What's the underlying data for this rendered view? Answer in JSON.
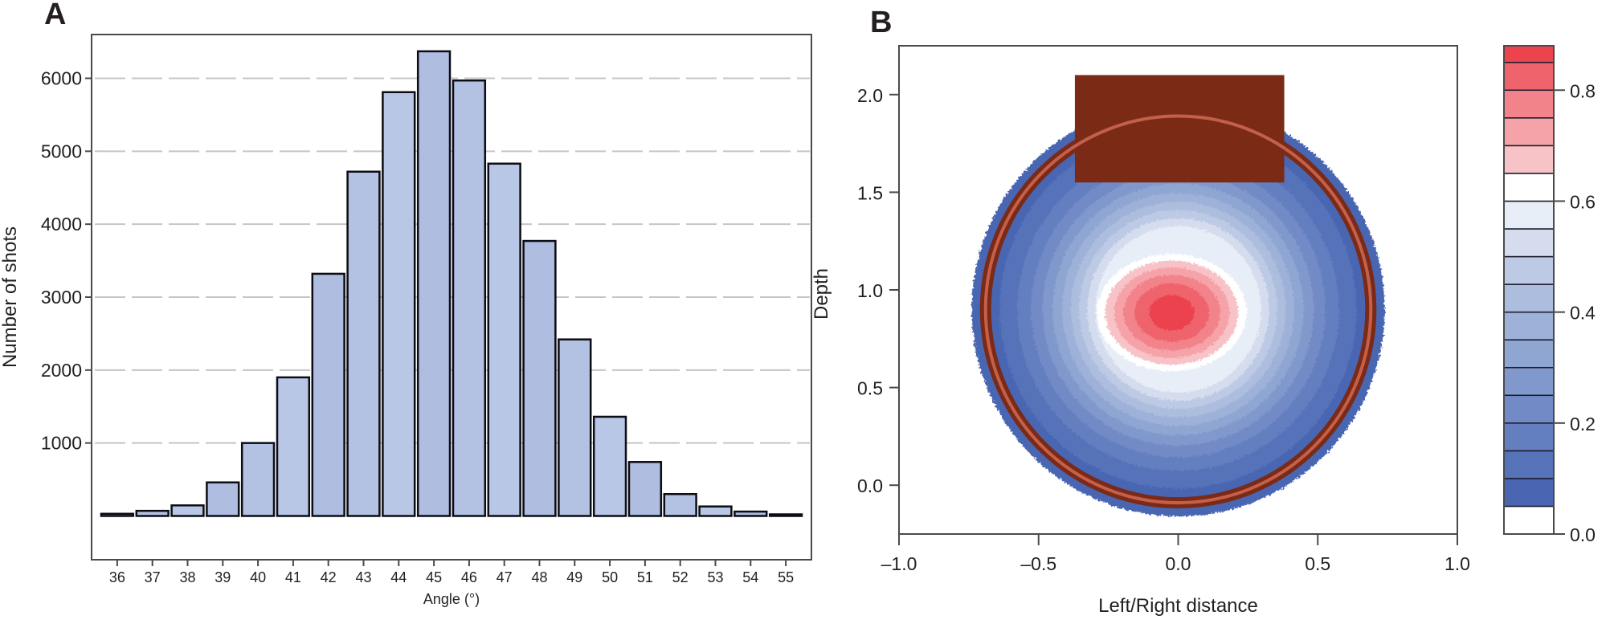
{
  "chart_data": [
    {
      "panel": "A",
      "type": "bar",
      "title": "",
      "xlabel": "Angle (°)",
      "ylabel": "Number of shots",
      "categories": [
        "36",
        "37",
        "38",
        "39",
        "40",
        "41",
        "42",
        "43",
        "44",
        "45",
        "46",
        "47",
        "48",
        "49",
        "50",
        "51",
        "52",
        "53",
        "54",
        "55"
      ],
      "values": [
        30,
        70,
        145,
        460,
        1000,
        1900,
        3320,
        4720,
        5810,
        6370,
        5970,
        4830,
        3770,
        2420,
        1360,
        740,
        300,
        130,
        60,
        20
      ],
      "yticks": [
        1000,
        2000,
        3000,
        4000,
        5000,
        6000
      ],
      "ytick_labels": [
        "1000",
        "2000",
        "3000",
        "4000",
        "5000",
        "6000"
      ],
      "ylim": [
        -600,
        6600
      ],
      "grid": "horizontal dashed",
      "bar_color": "#b4c3e3",
      "edge_color": "#0c0c14"
    },
    {
      "panel": "B",
      "type": "heatmap",
      "title": "",
      "xlabel": "Left/Right distance",
      "ylabel": "Depth",
      "xlim": [
        -1.0,
        1.0
      ],
      "ylim": [
        -0.25,
        2.25
      ],
      "xticks": [
        -1.0,
        -0.5,
        0.0,
        0.5,
        1.0
      ],
      "xtick_labels": [
        "–1.0",
        "–0.5",
        "0.0",
        "0.5",
        "1.0"
      ],
      "yticks": [
        0.0,
        0.5,
        1.0,
        1.5,
        2.0
      ],
      "ytick_labels": [
        "0.0",
        "0.5",
        "1.0",
        "1.5",
        "2.0"
      ],
      "description": "Radial probability field centered at the rim middle; red core peaks near (0.0, 0.9), fading through white to blue at the edge",
      "peak_center": [
        0.0,
        0.9
      ],
      "peak_value": 0.88,
      "rim": {
        "center": [
          0.0,
          0.9
        ],
        "radius_x": 0.69,
        "radius_y": 0.99,
        "color": "#7a2a17",
        "highlight": "#c4604a"
      },
      "backboard": {
        "x": [
          -0.37,
          0.38
        ],
        "y": [
          1.55,
          2.1
        ],
        "color": "#7b2a15"
      },
      "outer_field": {
        "radius_x": 0.74,
        "radius_y": 1.06
      },
      "colorbar": {
        "range": [
          0.0,
          0.88
        ],
        "ticks": [
          0.0,
          0.2,
          0.4,
          0.6,
          0.8
        ],
        "tick_labels": [
          "0.0",
          "0.2",
          "0.4",
          "0.6",
          "0.8"
        ],
        "breaks": [
          0.0,
          0.05,
          0.1,
          0.15,
          0.2,
          0.25,
          0.3,
          0.35,
          0.4,
          0.45,
          0.5,
          0.55,
          0.6,
          0.65,
          0.7,
          0.75,
          0.8,
          0.85,
          0.88
        ],
        "colors": [
          "#ffffff",
          "#4a66b3",
          "#5673ba",
          "#647fc0",
          "#728bc6",
          "#8198cc",
          "#8fa5d2",
          "#9eb1d8",
          "#adbdde",
          "#bdcae5",
          "#d4dcee",
          "#e8eef8",
          "#ffffff",
          "#f8c3c7",
          "#f5a3a9",
          "#f2838a",
          "#ef636c",
          "#ec434d",
          "#ea2b33"
        ]
      }
    }
  ],
  "panels": {
    "a_label": "A",
    "b_label": "B"
  }
}
